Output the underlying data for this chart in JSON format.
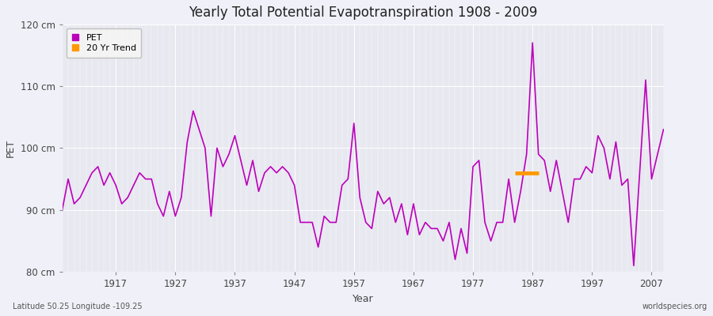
{
  "title": "Yearly Total Potential Evapotranspiration 1908 - 2009",
  "xlabel": "Year",
  "ylabel": "PET",
  "lat_lon_label": "Latitude 50.25 Longitude -109.25",
  "watermark": "worldspecies.org",
  "line_color": "#bb00bb",
  "trend_color": "#ff9900",
  "background_color": "#f0f0f8",
  "plot_bg_color": "#e8e8f0",
  "ylim": [
    80,
    120
  ],
  "xlim": [
    1908,
    2009
  ],
  "yticks": [
    80,
    90,
    100,
    110,
    120
  ],
  "ytick_labels": [
    "80 cm",
    "90 cm",
    "100 cm",
    "110 cm",
    "120 cm"
  ],
  "xticks": [
    1917,
    1927,
    1937,
    1947,
    1957,
    1967,
    1977,
    1987,
    1997,
    2007
  ],
  "years": [
    1908,
    1909,
    1910,
    1911,
    1912,
    1913,
    1914,
    1915,
    1916,
    1917,
    1918,
    1919,
    1920,
    1921,
    1922,
    1923,
    1924,
    1925,
    1926,
    1927,
    1928,
    1929,
    1930,
    1931,
    1932,
    1933,
    1934,
    1935,
    1936,
    1937,
    1938,
    1939,
    1940,
    1941,
    1942,
    1943,
    1944,
    1945,
    1946,
    1947,
    1948,
    1949,
    1950,
    1951,
    1952,
    1953,
    1954,
    1955,
    1956,
    1957,
    1958,
    1959,
    1960,
    1961,
    1962,
    1963,
    1964,
    1965,
    1966,
    1967,
    1968,
    1969,
    1970,
    1971,
    1972,
    1973,
    1974,
    1975,
    1976,
    1977,
    1978,
    1979,
    1980,
    1981,
    1982,
    1983,
    1984,
    1985,
    1986,
    1987,
    1988,
    1989,
    1990,
    1991,
    1992,
    1993,
    1994,
    1995,
    1996,
    1997,
    1998,
    1999,
    2000,
    2001,
    2002,
    2003,
    2004,
    2005,
    2006,
    2007,
    2008,
    2009
  ],
  "pet_values": [
    90,
    95,
    91,
    92,
    94,
    96,
    97,
    94,
    96,
    94,
    91,
    92,
    94,
    96,
    95,
    95,
    91,
    89,
    93,
    89,
    92,
    101,
    106,
    103,
    100,
    89,
    100,
    97,
    99,
    102,
    98,
    94,
    98,
    93,
    96,
    97,
    96,
    97,
    96,
    94,
    88,
    88,
    88,
    84,
    89,
    88,
    88,
    94,
    95,
    104,
    92,
    88,
    87,
    93,
    91,
    92,
    88,
    91,
    86,
    91,
    86,
    88,
    87,
    87,
    85,
    88,
    82,
    87,
    83,
    97,
    98,
    88,
    85,
    88,
    88,
    95,
    88,
    93,
    99,
    117,
    99,
    98,
    93,
    98,
    93,
    88,
    95,
    95,
    97,
    96,
    102,
    100,
    95,
    101,
    94,
    95,
    81,
    96,
    111,
    95,
    99,
    103
  ],
  "trend_x": [
    1984,
    1988
  ],
  "trend_y": [
    96,
    96
  ],
  "figsize": [
    9.0,
    4.0
  ],
  "dpi": 100
}
